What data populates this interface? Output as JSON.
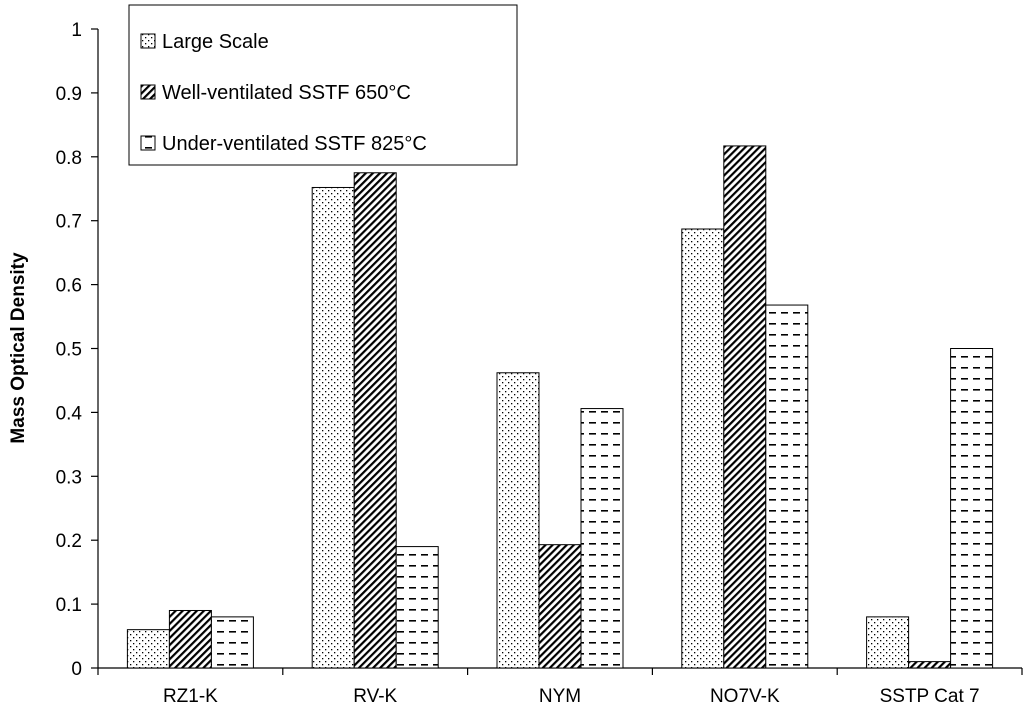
{
  "chart_data": {
    "type": "bar",
    "title": "",
    "xlabel": "",
    "ylabel": "Mass Optical Density",
    "ylim": [
      0,
      1
    ],
    "yticks": [
      "0",
      "0.1",
      "0.2",
      "0.3",
      "0.4",
      "0.5",
      "0.6",
      "0.7",
      "0.8",
      "0.9",
      "1"
    ],
    "categories": [
      "RZ1-K",
      "RV-K",
      "NYM",
      "NO7V-K",
      "SSTP Cat 7"
    ],
    "series": [
      {
        "name": "Large Scale",
        "pattern": "dots",
        "values": [
          0.06,
          0.752,
          0.462,
          0.687,
          0.08
        ]
      },
      {
        "name": "Well-ventilated SSTF 650°C",
        "pattern": "diagonal",
        "values": [
          0.09,
          0.775,
          0.193,
          0.817,
          0.01
        ]
      },
      {
        "name": "Under-ventilated SSTF 825°C",
        "pattern": "dashes",
        "values": [
          0.08,
          0.19,
          0.406,
          0.568,
          0.5
        ]
      }
    ],
    "grid": false,
    "legend_position": "top-left"
  }
}
